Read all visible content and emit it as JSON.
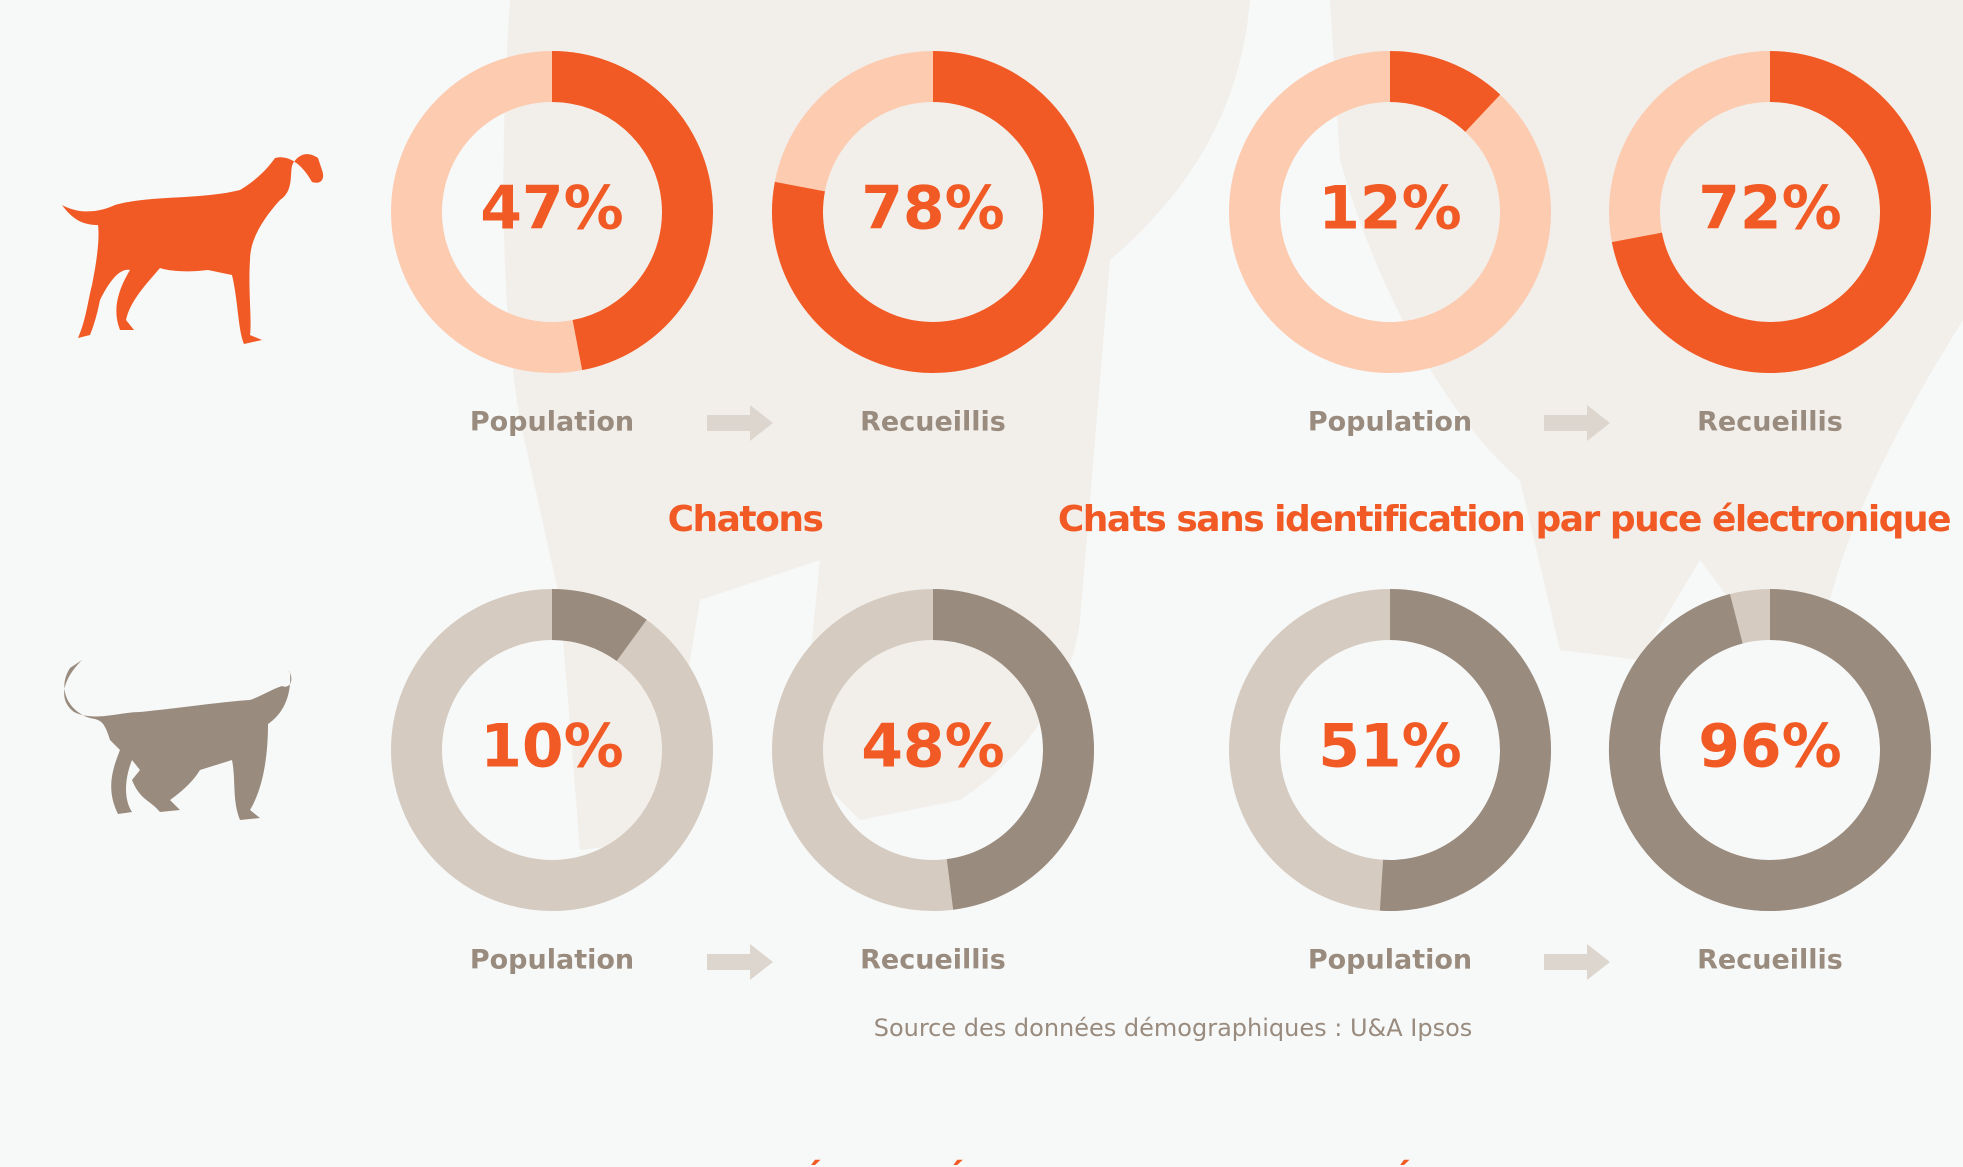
{
  "chart_data": [
    {
      "type": "donut",
      "categories": [
        "Population"
      ],
      "values": [
        47
      ],
      "value_labels": [
        "47%"
      ],
      "color": "#f15a24",
      "track_color": "#fccbb0"
    },
    {
      "type": "donut",
      "categories": [
        "Recueillis"
      ],
      "values": [
        78
      ],
      "value_labels": [
        "78%"
      ],
      "color": "#f15a24",
      "track_color": "#fccbb0"
    },
    {
      "type": "donut",
      "categories": [
        "Population"
      ],
      "values": [
        12
      ],
      "value_labels": [
        "12%"
      ],
      "color": "#f15a24",
      "track_color": "#fccbb0"
    },
    {
      "type": "donut",
      "categories": [
        "Recueillis"
      ],
      "values": [
        72
      ],
      "value_labels": [
        "72%"
      ],
      "color": "#f15a24",
      "track_color": "#fccbb0"
    },
    {
      "type": "donut",
      "categories": [
        "Population"
      ],
      "values": [
        10
      ],
      "value_labels": [
        "10%"
      ],
      "color": "#998b7e",
      "track_color": "#d5cbc0"
    },
    {
      "type": "donut",
      "categories": [
        "Recueillis"
      ],
      "values": [
        48
      ],
      "value_labels": [
        "48%"
      ],
      "color": "#998b7e",
      "track_color": "#d5cbc0"
    },
    {
      "type": "donut",
      "categories": [
        "Population"
      ],
      "values": [
        51
      ],
      "value_labels": [
        "51%"
      ],
      "color": "#998b7e",
      "track_color": "#d5cbc0"
    },
    {
      "type": "donut",
      "categories": [
        "Recueillis"
      ],
      "values": [
        96
      ],
      "value_labels": [
        "96%"
      ],
      "color": "#998b7e",
      "track_color": "#d5cbc0"
    }
  ],
  "titles": [
    "Chatons",
    "Chats sans identification par puce électronique"
  ],
  "source": "Source des données démographiques : U&A Ipsos",
  "footer_heading": "LES CHIENS ET LES CHATS NON STÉRILISÉS ET NON IDENTIFIÉS"
}
